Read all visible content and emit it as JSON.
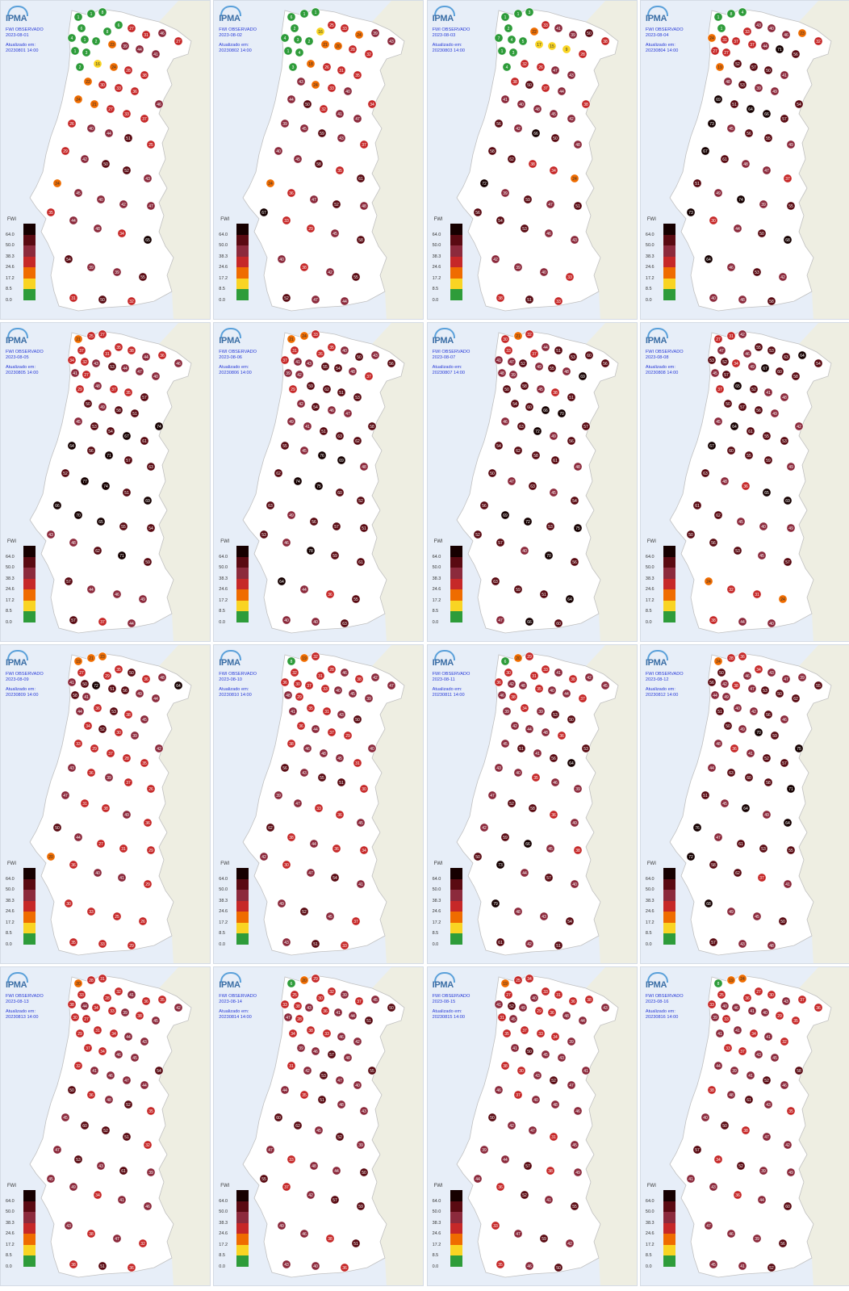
{
  "header": {
    "title": "FWI OBSERVADO",
    "updated_label": "Atualizado em:"
  },
  "logo_text": "IPMA",
  "legend": {
    "title": "FWI",
    "ticks": [
      "64.0",
      "50.0",
      "38.3",
      "24.6",
      "17.2",
      "8.5",
      "0.0"
    ],
    "colors": [
      "#160000",
      "#5a0a12",
      "#8c2a3c",
      "#c62828",
      "#ef6c00",
      "#f9d423",
      "#2e9c3a"
    ]
  },
  "colors": {
    "sea": "#e7eef8",
    "land_pt": "#ffffff",
    "land_es": "#eeeee2",
    "border": "#c0c0c0"
  },
  "panels": [
    {
      "date": "2023-08-01",
      "updated": "20230801 14:00",
      "values": [
        1,
        1,
        8,
        6,
        4,
        1,
        2,
        1,
        3,
        2,
        8,
        6,
        27,
        31,
        46,
        27,
        23,
        39,
        44,
        41,
        16,
        24,
        28,
        38,
        22,
        30,
        33,
        36,
        24,
        21,
        27,
        33,
        37,
        46,
        26,
        40,
        44,
        51,
        25,
        29,
        42,
        50,
        52,
        43,
        24,
        45,
        40,
        42,
        47,
        35,
        44,
        48,
        34,
        65,
        54,
        39,
        39,
        55,
        31,
        50,
        32
      ]
    },
    {
      "date": "2023-08-02",
      "updated": "20230802 14:00",
      "values": [
        6,
        1,
        1,
        2,
        4,
        3,
        2,
        1,
        4,
        3,
        16,
        25,
        33,
        24,
        39,
        43,
        21,
        20,
        28,
        32,
        18,
        26,
        31,
        35,
        43,
        24,
        33,
        40,
        44,
        50,
        32,
        41,
        47,
        34,
        39,
        45,
        59,
        43,
        37,
        40,
        45,
        58,
        35,
        61,
        24,
        36,
        47,
        52,
        48,
        67,
        33,
        29,
        45,
        58,
        40,
        38,
        42,
        55,
        52,
        47,
        44
      ]
    },
    {
      "date": "2023-08-03",
      "updated": "20230803 14:00",
      "values": [
        1,
        1,
        3,
        2,
        7,
        4,
        5,
        1,
        3,
        4,
        22,
        33,
        41,
        39,
        50,
        38,
        17,
        15,
        9,
        28,
        32,
        26,
        47,
        43,
        38,
        50,
        37,
        44,
        41,
        40,
        48,
        45,
        42,
        38,
        56,
        42,
        66,
        50,
        48,
        58,
        62,
        38,
        34,
        24,
        72,
        39,
        59,
        47,
        51,
        56,
        54,
        53,
        46,
        43,
        42,
        39,
        40,
        33,
        38,
        51,
        33
      ]
    },
    {
      "date": "2023-08-04",
      "updated": "20230804 14:00",
      "values": [
        1,
        8,
        4,
        1,
        24,
        31,
        37,
        27,
        27,
        19,
        33,
        43,
        40,
        46,
        23,
        32,
        37,
        44,
        71,
        56,
        52,
        57,
        50,
        41,
        48,
        53,
        39,
        49,
        69,
        51,
        64,
        66,
        57,
        54,
        73,
        45,
        56,
        55,
        49,
        67,
        61,
        48,
        47,
        37,
        51,
        49,
        74,
        39,
        55,
        73,
        30,
        44,
        50,
        68,
        64,
        46,
        53,
        42,
        40,
        48,
        58
      ]
    },
    {
      "date": "2023-08-05",
      "updated": "20230805 14:00",
      "values": [
        21,
        25,
        27,
        37,
        34,
        32,
        43,
        41,
        27,
        29,
        31,
        35,
        38,
        44,
        36,
        46,
        53,
        44,
        47,
        40,
        48,
        37,
        35,
        57,
        50,
        49,
        58,
        51,
        45,
        53,
        54,
        67,
        61,
        74,
        64,
        56,
        71,
        57,
        63,
        52,
        77,
        74,
        51,
        69,
        66,
        70,
        65,
        55,
        54,
        43,
        48,
        62,
        71,
        59,
        57,
        44,
        46,
        49,
        57,
        37,
        44
      ]
    },
    {
      "date": "2023-08-06",
      "updated": "20230806 14:00",
      "values": [
        21,
        24,
        33,
        31,
        37,
        41,
        43,
        39,
        42,
        29,
        26,
        35,
        40,
        50,
        43,
        56,
        55,
        54,
        48,
        37,
        59,
        62,
        51,
        53,
        42,
        54,
        46,
        47,
        49,
        41,
        51,
        63,
        62,
        58,
        55,
        45,
        76,
        69,
        48,
        62,
        74,
        75,
        60,
        52,
        63,
        49,
        56,
        57,
        51,
        53,
        46,
        78,
        59,
        61,
        64,
        44,
        36,
        55,
        40,
        40,
        63
      ]
    },
    {
      "date": "2023-08-07",
      "updated": "20230807 14:00",
      "values": [
        30,
        21,
        32,
        33,
        41,
        47,
        52,
        48,
        39,
        50,
        37,
        44,
        51,
        53,
        60,
        56,
        49,
        55,
        48,
        69,
        58,
        45,
        38,
        51,
        54,
        60,
        66,
        70,
        46,
        63,
        72,
        49,
        56,
        57,
        54,
        62,
        58,
        61,
        48,
        50,
        47,
        63,
        45,
        54,
        56,
        69,
        72,
        53,
        75,
        52,
        57,
        40,
        70,
        56,
        63,
        59,
        51,
        64,
        47,
        66,
        60
      ]
    },
    {
      "date": "2023-08-08",
      "updated": "20230808 14:00",
      "values": [
        27,
        31,
        42,
        47,
        53,
        52,
        34,
        45,
        57,
        37,
        46,
        55,
        53,
        63,
        64,
        54,
        49,
        67,
        60,
        58,
        65,
        52,
        41,
        48,
        50,
        57,
        56,
        49,
        45,
        64,
        61,
        55,
        53,
        42,
        67,
        60,
        55,
        59,
        49,
        63,
        48,
        36,
        65,
        69,
        61,
        62,
        45,
        40,
        49,
        50,
        56,
        53,
        45,
        57,
        24,
        32,
        31,
        24,
        38,
        44,
        40
      ]
    },
    {
      "date": "2023-08-09",
      "updated": "20230809 14:00",
      "values": [
        19,
        21,
        23,
        27,
        41,
        50,
        72,
        58,
        41,
        44,
        29,
        35,
        50,
        36,
        48,
        64,
        51,
        56,
        49,
        44,
        36,
        53,
        38,
        45,
        34,
        52,
        30,
        39,
        33,
        29,
        37,
        28,
        35,
        42,
        43,
        36,
        39,
        37,
        26,
        47,
        31,
        38,
        49,
        36,
        50,
        44,
        27,
        31,
        29,
        20,
        36,
        40,
        41,
        29,
        30,
        33,
        25,
        26,
        35,
        33,
        29
      ]
    },
    {
      "date": "2023-08-10",
      "updated": "20230810 14:00",
      "values": [
        8,
        19,
        32,
        32,
        36,
        30,
        37,
        48,
        29,
        41,
        31,
        28,
        46,
        38,
        42,
        47,
        33,
        40,
        45,
        39,
        35,
        31,
        43,
        50,
        36,
        44,
        37,
        29,
        38,
        46,
        48,
        45,
        31,
        40,
        56,
        43,
        55,
        51,
        30,
        39,
        47,
        33,
        36,
        45,
        62,
        38,
        44,
        36,
        34,
        42,
        30,
        47,
        54,
        41,
        49,
        52,
        45,
        37,
        43,
        51,
        33
      ]
    },
    {
      "date": "2023-08-11",
      "updated": "20230811 14:00",
      "values": [
        6,
        20,
        29,
        30,
        36,
        42,
        48,
        46,
        38,
        39,
        31,
        33,
        41,
        38,
        42,
        45,
        35,
        40,
        44,
        37,
        34,
        39,
        53,
        50,
        42,
        44,
        48,
        36,
        45,
        51,
        41,
        56,
        64,
        53,
        43,
        40,
        35,
        46,
        39,
        47,
        52,
        58,
        36,
        49,
        42,
        59,
        66,
        45,
        38,
        50,
        73,
        44,
        57,
        40,
        79,
        48,
        43,
        54,
        61,
        42,
        51
      ]
    },
    {
      "date": "2023-08-12",
      "updated": "20230812 14:00",
      "values": [
        24,
        28,
        36,
        50,
        56,
        42,
        38,
        44,
        49,
        51,
        46,
        34,
        43,
        47,
        39,
        55,
        47,
        53,
        50,
        62,
        40,
        42,
        56,
        46,
        50,
        49,
        70,
        59,
        48,
        36,
        41,
        52,
        57,
        75,
        44,
        63,
        60,
        58,
        71,
        51,
        45,
        64,
        49,
        64,
        76,
        47,
        61,
        53,
        55,
        72,
        58,
        62,
        37,
        41,
        68,
        49,
        45,
        50,
        57,
        43,
        48
      ]
    },
    {
      "date": "2023-08-13",
      "updated": "20230813 14:00",
      "values": [
        20,
        28,
        31,
        33,
        38,
        44,
        34,
        30,
        27,
        29,
        28,
        32,
        41,
        36,
        35,
        42,
        33,
        39,
        38,
        45,
        31,
        34,
        44,
        43,
        37,
        34,
        46,
        45,
        32,
        41,
        46,
        47,
        44,
        54,
        50,
        36,
        48,
        52,
        35,
        45,
        60,
        52,
        51,
        32,
        47,
        53,
        43,
        61,
        39,
        45,
        49,
        34,
        41,
        46,
        43,
        38,
        47,
        32,
        38,
        51,
        36
      ]
    },
    {
      "date": "2023-08-14",
      "updated": "20230814 14:00",
      "values": [
        6,
        20,
        29,
        25,
        33,
        38,
        43,
        47,
        28,
        34,
        30,
        32,
        39,
        37,
        45,
        50,
        36,
        41,
        44,
        51,
        38,
        33,
        46,
        42,
        39,
        46,
        57,
        48,
        31,
        42,
        53,
        47,
        40,
        55,
        44,
        35,
        51,
        48,
        43,
        60,
        62,
        45,
        52,
        39,
        47,
        33,
        48,
        44,
        50,
        55,
        37,
        42,
        57,
        59,
        49,
        46,
        38,
        51,
        43,
        40,
        36
      ]
    },
    {
      "date": "2023-08-15",
      "updated": "20230815 14:00",
      "values": [
        19,
        25,
        34,
        27,
        41,
        52,
        49,
        31,
        45,
        35,
        40,
        33,
        31,
        36,
        38,
        43,
        29,
        36,
        48,
        44,
        37,
        33,
        34,
        39,
        41,
        50,
        45,
        43,
        38,
        30,
        43,
        52,
        47,
        41,
        46,
        37,
        40,
        48,
        46,
        50,
        42,
        47,
        31,
        45,
        39,
        44,
        57,
        38,
        49,
        44,
        36,
        52,
        41,
        55,
        33,
        47,
        59,
        42,
        35,
        46,
        50
      ]
    },
    {
      "date": "2023-08-16",
      "updated": "20230816 14:00",
      "values": [
        8,
        19,
        24,
        25,
        33,
        40,
        46,
        39,
        33,
        41,
        36,
        27,
        30,
        43,
        37,
        36,
        41,
        40,
        29,
        35,
        41,
        34,
        41,
        32,
        33,
        37,
        43,
        45,
        44,
        39,
        41,
        52,
        46,
        58,
        38,
        48,
        61,
        43,
        35,
        40,
        50,
        38,
        47,
        42,
        57,
        34,
        52,
        39,
        49,
        41,
        43,
        36,
        44,
        60,
        47,
        46,
        39,
        56,
        45,
        41,
        52
      ]
    }
  ]
}
